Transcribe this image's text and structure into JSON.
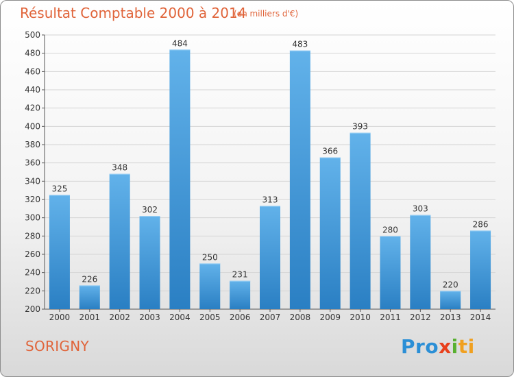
{
  "header": {
    "title": "Résultat Comptable 2000 à 2014",
    "subtitle": "(en milliers d'€)"
  },
  "footer": {
    "town": "SORIGNY",
    "brand_parts": [
      "Pro",
      "x",
      "i",
      "ti"
    ]
  },
  "colors": {
    "title": "#e0643a",
    "bar_light": "#62b2ea",
    "bar_dark": "#2a7fc3",
    "grid": "#d4d4d4"
  },
  "chart_data": {
    "type": "bar",
    "title": "Résultat Comptable 2000 à 2014",
    "subtitle": "(en milliers d'€)",
    "xlabel": "",
    "ylabel": "",
    "ylim": [
      200,
      500
    ],
    "ytick_step": 20,
    "grid": true,
    "categories": [
      "2000",
      "2001",
      "2002",
      "2003",
      "2004",
      "2005",
      "2006",
      "2007",
      "2008",
      "2009",
      "2010",
      "2011",
      "2012",
      "2013",
      "2014"
    ],
    "values": [
      325,
      226,
      348,
      302,
      484,
      250,
      231,
      313,
      483,
      366,
      393,
      280,
      303,
      220,
      286
    ]
  }
}
